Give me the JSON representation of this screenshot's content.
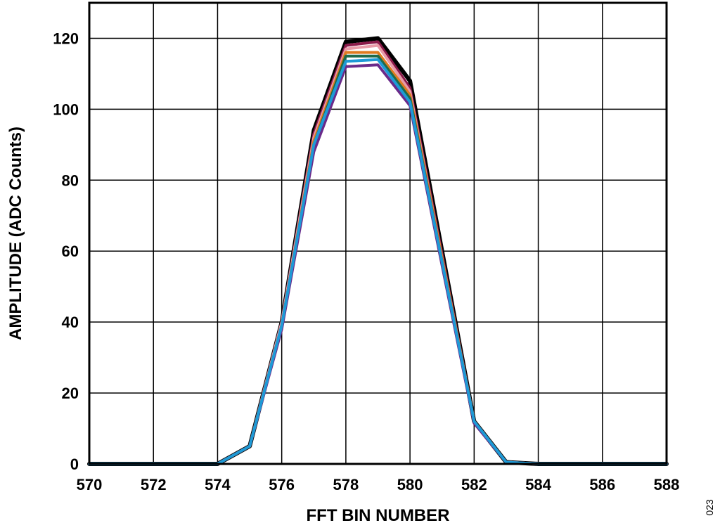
{
  "chart_data": {
    "type": "line",
    "xlabel": "FFT BIN NUMBER",
    "ylabel": "AMPLITUDE (ADC Counts)",
    "xlim": [
      570,
      588
    ],
    "ylim": [
      0,
      130
    ],
    "xticks": [
      570,
      572,
      574,
      576,
      578,
      580,
      582,
      584,
      586,
      588
    ],
    "yticks": [
      0,
      20,
      40,
      60,
      80,
      100,
      120
    ],
    "xtick_labels": [
      "570",
      "572",
      "574",
      "576",
      "578",
      "580",
      "582",
      "584",
      "586",
      "588"
    ],
    "ytick_labels": [
      "0",
      "20",
      "40",
      "60",
      "80",
      "100",
      "120"
    ],
    "grid": true,
    "x": [
      570,
      571,
      572,
      573,
      574,
      575,
      576,
      577,
      578,
      579,
      580,
      581,
      582,
      583,
      584,
      585,
      586,
      587,
      588
    ],
    "series": [
      {
        "color": "#000000",
        "values": [
          0,
          0,
          0,
          0,
          0,
          5,
          40,
          94,
          119,
          120,
          108,
          60,
          12,
          0.5,
          0,
          0,
          0,
          0,
          0
        ]
      },
      {
        "color": "#8b1a4a",
        "values": [
          0,
          0,
          0,
          0,
          0,
          5,
          40,
          93,
          118,
          119,
          106,
          59,
          12,
          0.5,
          0,
          0,
          0,
          0,
          0
        ]
      },
      {
        "color": "#e89aa8",
        "values": [
          0,
          0,
          0,
          0,
          0,
          5,
          40,
          92,
          117,
          118,
          105,
          58,
          12,
          0.5,
          0,
          0,
          0,
          0,
          0
        ]
      },
      {
        "color": "#e07b20",
        "values": [
          0,
          0,
          0,
          0,
          0,
          5,
          39,
          91,
          116,
          116,
          104,
          58,
          12,
          0.5,
          0,
          0,
          0,
          0,
          0
        ]
      },
      {
        "color": "#1f6b4a",
        "values": [
          0,
          0,
          0,
          0,
          0,
          5,
          39,
          90,
          115,
          115,
          103,
          57,
          12,
          0.5,
          0,
          0,
          0,
          0,
          0
        ]
      },
      {
        "color": "#6a2a8a",
        "values": [
          0,
          0,
          0,
          0,
          0,
          5,
          38,
          88,
          112,
          112.5,
          101,
          56,
          11.5,
          0.5,
          0,
          0,
          0,
          0,
          0
        ]
      },
      {
        "color": "#1e9ad6",
        "values": [
          0,
          0,
          0,
          0,
          0,
          5,
          39,
          90,
          113.5,
          114,
          102,
          57,
          12,
          0.5,
          0,
          0,
          0,
          0,
          0
        ]
      }
    ]
  },
  "figure_id": "023"
}
